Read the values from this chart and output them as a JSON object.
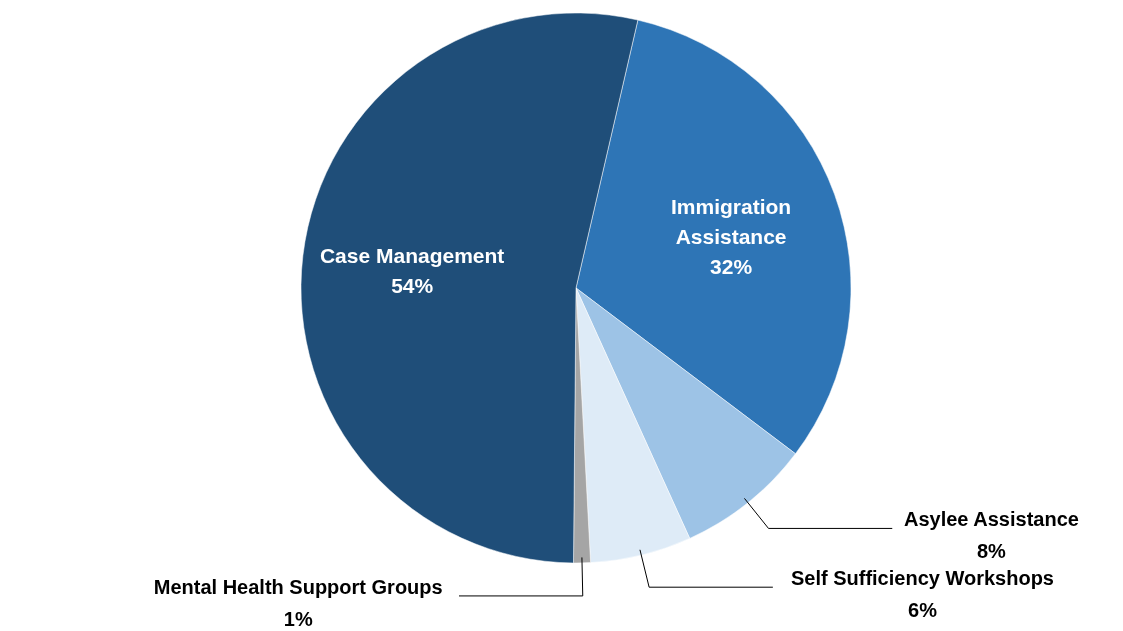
{
  "chart_data": {
    "type": "pie",
    "categories": [
      "Immigration Assistance",
      "Asylee Assistance",
      "Self Sufficiency Workshops",
      "Mental Health Support Groups",
      "Case Management"
    ],
    "values": [
      32,
      8,
      6,
      1,
      54
    ],
    "value_labels": [
      "32%",
      "8%",
      "6%",
      "1%",
      "54%"
    ],
    "colors": [
      "#2e75b6",
      "#9dc3e6",
      "#deebf7",
      "#a5a5a5",
      "#1f4e79"
    ]
  }
}
